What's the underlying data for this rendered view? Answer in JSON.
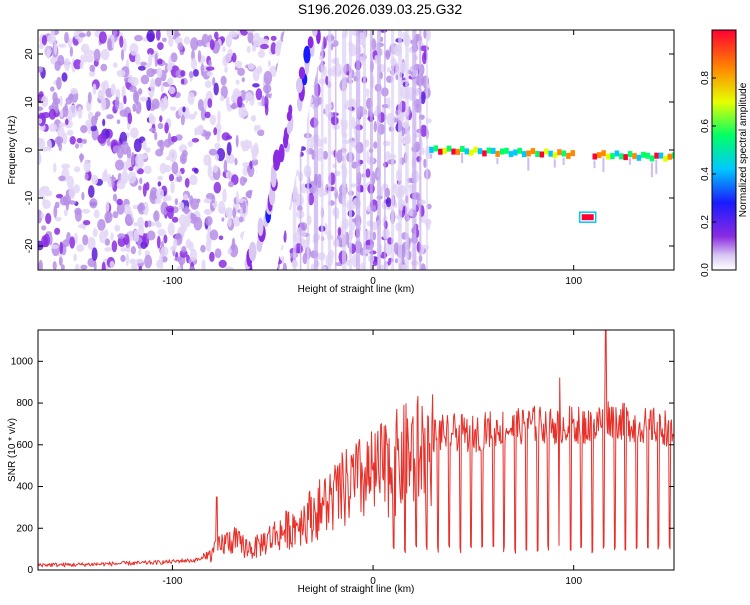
{
  "figure_title": "S196.2026.039.03.25.G32",
  "chart_data": [
    {
      "type": "heatmap",
      "panel": "spectrogram",
      "xlabel": "Height of straight line (km)",
      "ylabel": "Frequency (Hz)",
      "xlim": [
        -167,
        150
      ],
      "ylim": [
        -25,
        25
      ],
      "x_ticks": [
        -100,
        0,
        100
      ],
      "y_ticks": [
        -20,
        -10,
        0,
        10,
        20
      ],
      "colorbar": {
        "label": "Normalized spectral amplitude",
        "range": [
          0,
          1
        ],
        "ticks": [
          0.0,
          0.2,
          0.4,
          0.6,
          0.8
        ],
        "tick_labels": [
          "0.0",
          "0.2",
          "0.4",
          "0.6",
          "0.8"
        ],
        "colormap": [
          "#ffffff",
          "#d9c8f2",
          "#8a2be2",
          "#1a1aff",
          "#00c8ff",
          "#00ff66",
          "#e6ff00",
          "#ff8800",
          "#ff0033"
        ]
      },
      "features": {
        "noise_region_x": [
          -167,
          28
        ],
        "carrier_line": {
          "x": [
            28,
            150
          ],
          "frequency": [
            0.0,
            -1.5
          ],
          "gap_x": [
            100,
            108
          ]
        },
        "diagonal_streak": {
          "x": [
            -62,
            -28
          ],
          "frequency": [
            -25,
            25
          ]
        },
        "tone_at_negative_frequency": {
          "x": [
            104,
            110
          ],
          "frequency": -14
        },
        "blank_region_x": [
          28,
          150
        ]
      }
    },
    {
      "type": "line",
      "panel": "snr",
      "xlabel": "Height of straight line (km)",
      "ylabel": "SNR (10 * v/v)",
      "xlim": [
        -167,
        150
      ],
      "ylim": [
        0,
        1150
      ],
      "x_ticks": [
        -100,
        0,
        100
      ],
      "y_ticks": [
        0,
        200,
        400,
        600,
        800,
        1000
      ],
      "series_color": "#e8302a",
      "series": [
        {
          "x": [
            -167,
            -150,
            -130,
            -110,
            -100,
            -95,
            -90,
            -85,
            -80,
            -75,
            -70,
            -65,
            -60,
            -50,
            -40,
            -30,
            -20,
            -10,
            0,
            10,
            20,
            30,
            40,
            50,
            60,
            70,
            80,
            90,
            100,
            110,
            116,
            120,
            130,
            140,
            150
          ],
          "y": [
            25,
            25,
            30,
            35,
            40,
            45,
            45,
            55,
            90,
            140,
            160,
            130,
            110,
            180,
            230,
            300,
            380,
            460,
            500,
            560,
            620,
            650,
            660,
            650,
            680,
            680,
            700,
            690,
            700,
            680,
            740,
            720,
            700,
            690,
            680
          ]
        }
      ],
      "dropout_start_x": 10,
      "dropout_spacing": 5.5,
      "dropout_level": 80,
      "peaks": [
        {
          "x": -78,
          "y": 350
        },
        {
          "x": 93,
          "y": 920
        },
        {
          "x": 116,
          "y": 1150
        }
      ],
      "grid": false
    }
  ]
}
